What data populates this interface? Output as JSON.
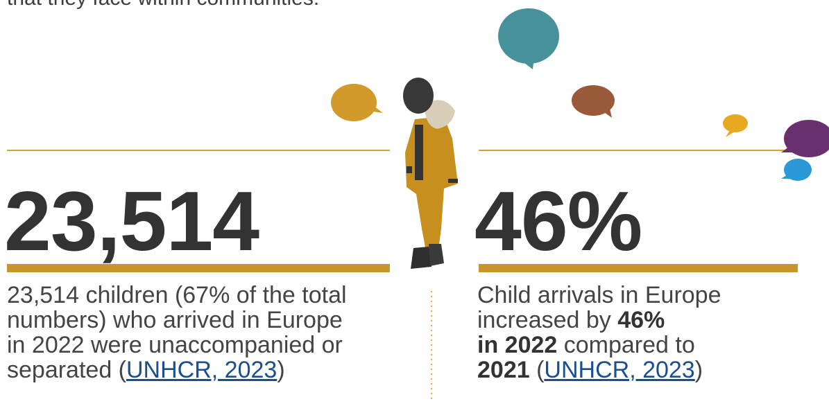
{
  "intro_text": "that they face within communities.",
  "stats": [
    {
      "figure": "23,514",
      "lines": [
        [
          {
            "text": "23,514 children (67% of the total"
          }
        ],
        [
          {
            "text": "numbers) who arrived in Europe"
          }
        ],
        [
          {
            "text": "in 2022 were unaccompanied or"
          }
        ],
        [
          {
            "text": "separated ("
          },
          {
            "text": "UNHCR, 2023",
            "link": true
          },
          {
            "text": ")"
          }
        ]
      ]
    },
    {
      "figure": "46%",
      "lines": [
        [
          {
            "text": "Child arrivals in Europe"
          }
        ],
        [
          {
            "text": "increased by "
          },
          {
            "text": "46%",
            "bold": true
          }
        ],
        [
          {
            "text": "in 2022",
            "bold": true
          },
          {
            "text": " compared to"
          }
        ],
        [
          {
            "text": "2021",
            "bold": true
          },
          {
            "text": " ("
          },
          {
            "text": "UNHCR, 2023",
            "link": true
          },
          {
            "text": ")"
          }
        ]
      ]
    }
  ]
}
